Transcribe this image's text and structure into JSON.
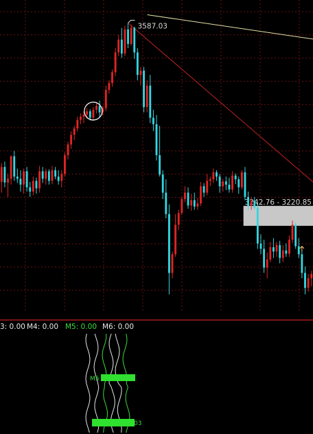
{
  "chart_data": [
    {
      "type": "candlestick",
      "title": "",
      "ylim": [
        3050,
        3630
      ],
      "grid": true,
      "colors": {
        "up": "#e02525",
        "down": "#33d6e0",
        "bg": "#000000",
        "grid": "#6e1010"
      },
      "annotations": {
        "peak_label": "3587.03",
        "range_label": "3242.76 - 3220.85",
        "range_band": [
          3220.85,
          3242.76
        ]
      },
      "candles": [
        [
          3290,
          3325,
          3270,
          3318
        ],
        [
          3318,
          3328,
          3280,
          3289
        ],
        [
          3289,
          3305,
          3262,
          3296
        ],
        [
          3296,
          3340,
          3285,
          3338
        ],
        [
          3338,
          3348,
          3292,
          3300
        ],
        [
          3300,
          3315,
          3288,
          3296
        ],
        [
          3296,
          3312,
          3272,
          3285
        ],
        [
          3285,
          3315,
          3268,
          3310
        ],
        [
          3310,
          3318,
          3272,
          3280
        ],
        [
          3280,
          3290,
          3262,
          3272
        ],
        [
          3272,
          3300,
          3265,
          3292
        ],
        [
          3292,
          3298,
          3268,
          3278
        ],
        [
          3278,
          3320,
          3270,
          3310
        ],
        [
          3310,
          3318,
          3288,
          3296
        ],
        [
          3296,
          3315,
          3285,
          3310
        ],
        [
          3310,
          3314,
          3285,
          3292
        ],
        [
          3292,
          3320,
          3286,
          3312
        ],
        [
          3312,
          3318,
          3295,
          3300
        ],
        [
          3300,
          3312,
          3285,
          3292
        ],
        [
          3292,
          3312,
          3280,
          3305
        ],
        [
          3305,
          3345,
          3300,
          3340
        ],
        [
          3340,
          3365,
          3332,
          3360
        ],
        [
          3360,
          3385,
          3352,
          3378
        ],
        [
          3378,
          3395,
          3368,
          3390
        ],
        [
          3390,
          3412,
          3384,
          3406
        ],
        [
          3406,
          3418,
          3398,
          3412
        ],
        [
          3412,
          3422,
          3400,
          3416
        ],
        [
          3416,
          3428,
          3408,
          3422
        ],
        [
          3422,
          3426,
          3405,
          3410
        ],
        [
          3410,
          3430,
          3404,
          3425
        ],
        [
          3425,
          3438,
          3418,
          3432
        ],
        [
          3432,
          3442,
          3412,
          3420
        ],
        [
          3420,
          3432,
          3414,
          3428
        ],
        [
          3428,
          3470,
          3422,
          3462
        ],
        [
          3462,
          3480,
          3455,
          3475
        ],
        [
          3475,
          3500,
          3468,
          3495
        ],
        [
          3495,
          3540,
          3488,
          3532
        ],
        [
          3532,
          3565,
          3525,
          3556
        ],
        [
          3556,
          3578,
          3522,
          3530
        ],
        [
          3530,
          3582,
          3525,
          3575
        ],
        [
          3575,
          3587,
          3540,
          3548
        ],
        [
          3548,
          3584,
          3545,
          3578
        ],
        [
          3578,
          3580,
          3520,
          3532
        ],
        [
          3532,
          3540,
          3480,
          3490
        ],
        [
          3490,
          3505,
          3470,
          3498
        ],
        [
          3498,
          3505,
          3420,
          3430
        ],
        [
          3430,
          3480,
          3420,
          3470
        ],
        [
          3470,
          3490,
          3400,
          3410
        ],
        [
          3410,
          3425,
          3385,
          3398
        ],
        [
          3398,
          3415,
          3330,
          3340
        ],
        [
          3340,
          3395,
          3300,
          3304
        ],
        [
          3304,
          3312,
          3258,
          3270
        ],
        [
          3270,
          3295,
          3222,
          3230
        ],
        [
          3230,
          3248,
          3080,
          3120
        ],
        [
          3120,
          3160,
          3110,
          3155
        ],
        [
          3155,
          3230,
          3150,
          3210
        ],
        [
          3210,
          3238,
          3200,
          3232
        ],
        [
          3232,
          3262,
          3228,
          3258
        ],
        [
          3258,
          3282,
          3252,
          3270
        ],
        [
          3270,
          3280,
          3240,
          3246
        ],
        [
          3246,
          3268,
          3236,
          3256
        ],
        [
          3256,
          3270,
          3238,
          3244
        ],
        [
          3244,
          3260,
          3238,
          3250
        ],
        [
          3250,
          3290,
          3245,
          3282
        ],
        [
          3282,
          3288,
          3262,
          3270
        ],
        [
          3270,
          3305,
          3265,
          3292
        ],
        [
          3292,
          3300,
          3282,
          3295
        ],
        [
          3295,
          3315,
          3288,
          3308
        ],
        [
          3308,
          3312,
          3292,
          3300
        ],
        [
          3300,
          3305,
          3270,
          3282
        ],
        [
          3282,
          3296,
          3272,
          3291
        ],
        [
          3291,
          3300,
          3275,
          3285
        ],
        [
          3285,
          3298,
          3270,
          3276
        ],
        [
          3276,
          3310,
          3270,
          3302
        ],
        [
          3302,
          3306,
          3286,
          3295
        ],
        [
          3295,
          3300,
          3268,
          3280
        ],
        [
          3280,
          3312,
          3276,
          3308
        ],
        [
          3308,
          3318,
          3256,
          3262
        ],
        [
          3262,
          3272,
          3238,
          3245
        ],
        [
          3245,
          3262,
          3238,
          3255
        ],
        [
          3255,
          3262,
          3238,
          3242
        ],
        [
          3242,
          3250,
          3165,
          3175
        ],
        [
          3175,
          3192,
          3155,
          3165
        ],
        [
          3165,
          3182,
          3120,
          3130
        ],
        [
          3130,
          3158,
          3110,
          3145
        ],
        [
          3145,
          3178,
          3140,
          3168
        ],
        [
          3168,
          3185,
          3148,
          3160
        ],
        [
          3160,
          3178,
          3150,
          3172
        ],
        [
          3172,
          3180,
          3138,
          3148
        ],
        [
          3148,
          3172,
          3140,
          3162
        ],
        [
          3162,
          3175,
          3150,
          3156
        ],
        [
          3156,
          3190,
          3150,
          3182
        ],
        [
          3182,
          3218,
          3176,
          3210
        ],
        [
          3210,
          3214,
          3165,
          3170
        ],
        [
          3170,
          3185,
          3148,
          3155
        ],
        [
          3155,
          3162,
          3110,
          3120
        ],
        [
          3120,
          3132,
          3080,
          3092
        ],
        [
          3092,
          3118,
          3085,
          3110
        ],
        [
          3110,
          3124,
          3095,
          3118
        ]
      ]
    },
    {
      "type": "line",
      "title": "",
      "legend": [
        {
          "name": "3: 0.00",
          "color": "#e8e8e8"
        },
        {
          "name": "M4: 0.00",
          "color": "#e8e8e8"
        },
        {
          "name": "M5: 0.00",
          "color": "#3ddc3d"
        },
        {
          "name": "M6: 0.00",
          "color": "#e8e8e8"
        }
      ],
      "overlay_labels": [
        "M5",
        "000",
        "03"
      ]
    }
  ]
}
